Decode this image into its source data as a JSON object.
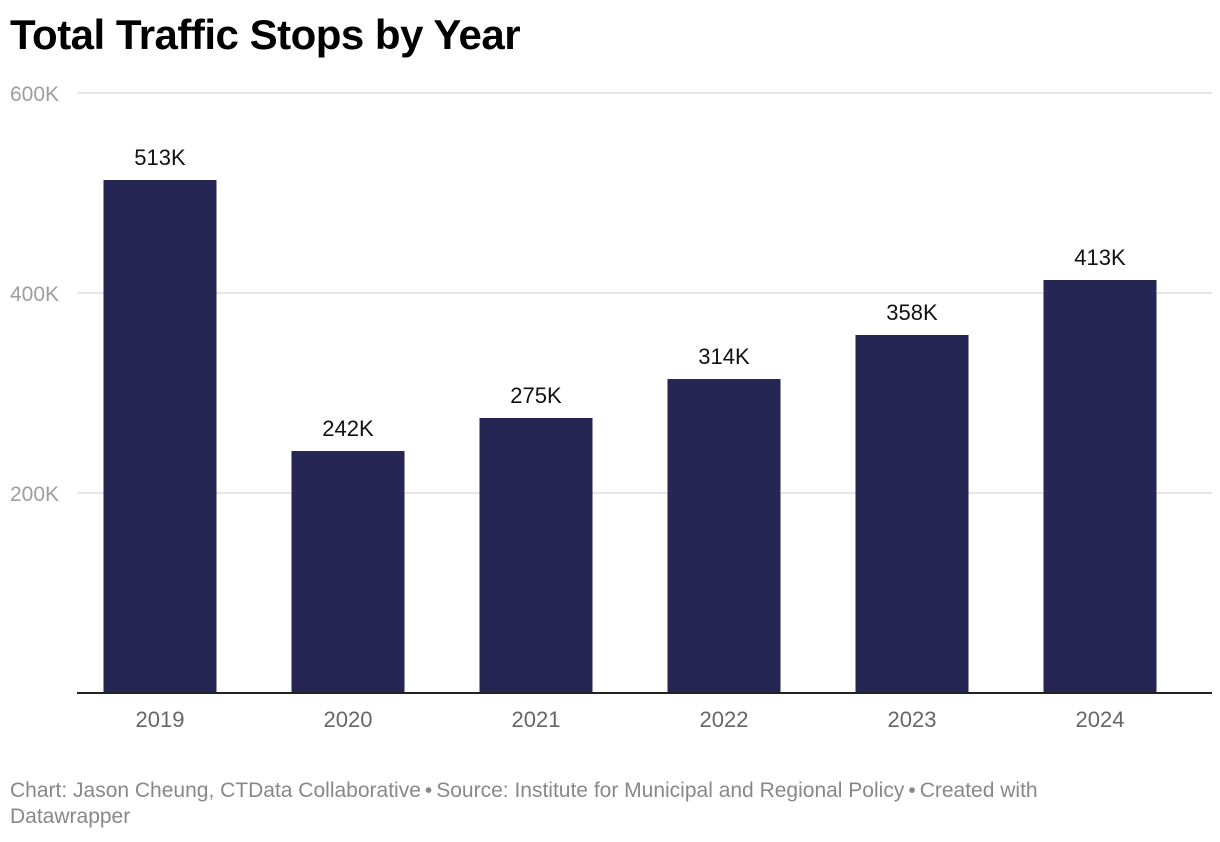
{
  "chart_data": {
    "type": "bar",
    "title": "Total Traffic Stops by Year",
    "xlabel": "",
    "ylabel": "",
    "categories": [
      "2019",
      "2020",
      "2021",
      "2022",
      "2023",
      "2024"
    ],
    "values": [
      513000,
      242000,
      275000,
      314000,
      358000,
      413000
    ],
    "data_labels": [
      "513K",
      "242K",
      "275K",
      "314K",
      "358K",
      "413K"
    ],
    "ylim": [
      0,
      600000
    ],
    "y_ticks": [
      {
        "value": 200000,
        "label": "200K"
      },
      {
        "value": 400000,
        "label": "400K"
      },
      {
        "value": 600000,
        "label": "600K"
      }
    ],
    "grid": true,
    "legend": "none",
    "bar_color": "#262655"
  },
  "footer": {
    "credit": "Chart: Jason Cheung, CTData Collaborative",
    "source": "Source: Institute for Municipal and Regional Policy",
    "tool": "Created with Datawrapper",
    "separator": "•"
  }
}
